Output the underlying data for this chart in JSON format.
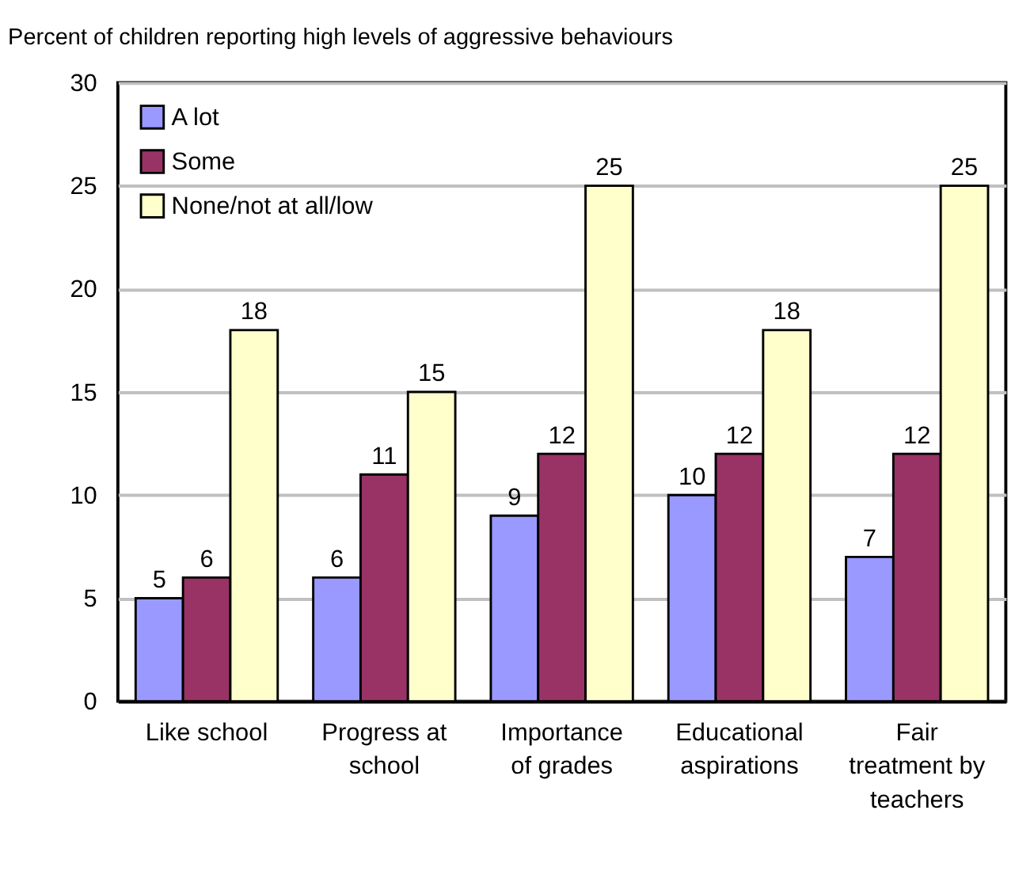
{
  "chart_data": {
    "type": "bar",
    "title": "Percent of children reporting high levels of aggressive behaviours",
    "categories": [
      "Like school",
      "Progress at school",
      "Importance of grades",
      "Educational aspirations",
      "Fair treatment by teachers"
    ],
    "series": [
      {
        "name": "A lot",
        "color": "#9999ff",
        "values": [
          5,
          6,
          9,
          10,
          7
        ]
      },
      {
        "name": "Some",
        "color": "#993366",
        "values": [
          6,
          11,
          12,
          12,
          12
        ]
      },
      {
        "name": "None/not at all/low",
        "color": "#ffffcc",
        "values": [
          18,
          15,
          25,
          18,
          25
        ]
      }
    ],
    "ylim": [
      0,
      30
    ],
    "yticks": [
      0,
      5,
      10,
      15,
      20,
      25,
      30
    ],
    "grid": "y",
    "legend": "top left",
    "data_labels": true
  }
}
